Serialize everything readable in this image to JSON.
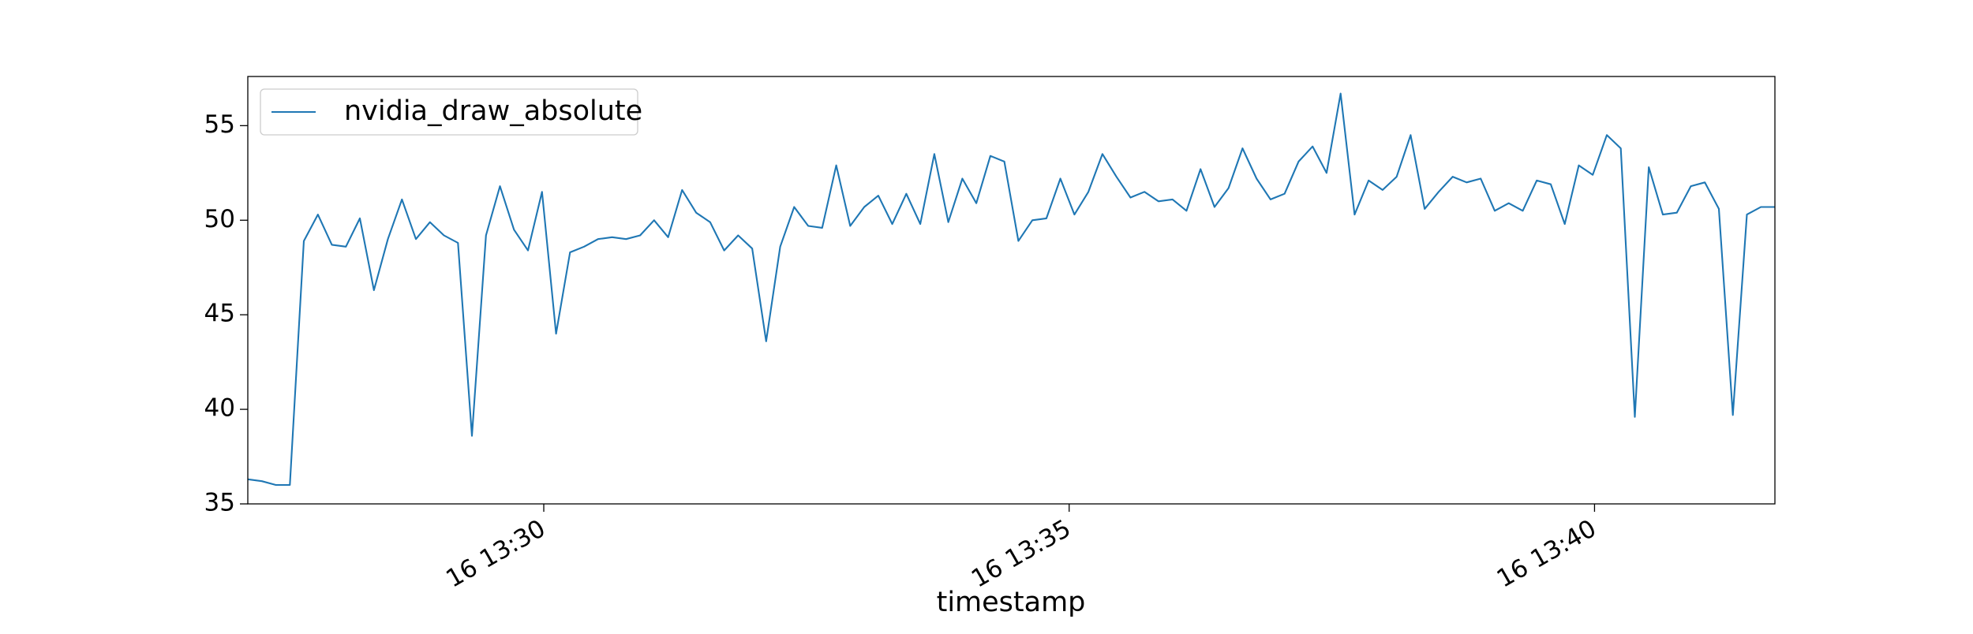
{
  "chart_data": {
    "type": "line",
    "xlabel": "timestamp",
    "x": [
      "16 13:27:11",
      "16 13:27:19",
      "16 13:27:27",
      "16 13:27:35",
      "16 13:27:43",
      "16 13:27:51",
      "16 13:27:59",
      "16 13:28:07",
      "16 13:28:15",
      "16 13:28:23",
      "16 13:28:31",
      "16 13:28:39",
      "16 13:28:47",
      "16 13:28:55",
      "16 13:29:03",
      "16 13:29:11",
      "16 13:29:19",
      "16 13:29:27",
      "16 13:29:35",
      "16 13:29:43",
      "16 13:29:51",
      "16 13:29:59",
      "16 13:30:07",
      "16 13:30:15",
      "16 13:30:23",
      "16 13:30:31",
      "16 13:30:39",
      "16 13:30:47",
      "16 13:30:55",
      "16 13:31:03",
      "16 13:31:11",
      "16 13:31:19",
      "16 13:31:27",
      "16 13:31:35",
      "16 13:31:43",
      "16 13:31:51",
      "16 13:31:59",
      "16 13:32:07",
      "16 13:32:15",
      "16 13:32:23",
      "16 13:32:31",
      "16 13:32:39",
      "16 13:32:47",
      "16 13:32:55",
      "16 13:33:03",
      "16 13:33:11",
      "16 13:33:19",
      "16 13:33:27",
      "16 13:33:35",
      "16 13:33:43",
      "16 13:33:51",
      "16 13:33:59",
      "16 13:34:07",
      "16 13:34:15",
      "16 13:34:23",
      "16 13:34:31",
      "16 13:34:39",
      "16 13:34:47",
      "16 13:34:55",
      "16 13:35:03",
      "16 13:35:11",
      "16 13:35:19",
      "16 13:35:27",
      "16 13:35:35",
      "16 13:35:43",
      "16 13:35:51",
      "16 13:35:59",
      "16 13:36:07",
      "16 13:36:15",
      "16 13:36:23",
      "16 13:36:31",
      "16 13:36:39",
      "16 13:36:47",
      "16 13:36:55",
      "16 13:37:03",
      "16 13:37:11",
      "16 13:37:19",
      "16 13:37:27",
      "16 13:37:35",
      "16 13:37:43",
      "16 13:37:51",
      "16 13:37:59",
      "16 13:38:07",
      "16 13:38:15",
      "16 13:38:23",
      "16 13:38:31",
      "16 13:38:39",
      "16 13:38:47",
      "16 13:38:55",
      "16 13:39:03",
      "16 13:39:11",
      "16 13:39:19",
      "16 13:39:27",
      "16 13:39:35",
      "16 13:39:43",
      "16 13:39:51",
      "16 13:39:59",
      "16 13:40:07",
      "16 13:40:15",
      "16 13:40:23",
      "16 13:40:31",
      "16 13:40:39",
      "16 13:40:47",
      "16 13:40:55",
      "16 13:41:03",
      "16 13:41:11",
      "16 13:41:19",
      "16 13:41:27",
      "16 13:41:35",
      "16 13:41:43"
    ],
    "series": [
      {
        "name": "nvidia_draw_absolute",
        "color": "#1f77b4",
        "values": [
          36.3,
          36.2,
          36.0,
          36.0,
          48.9,
          50.3,
          48.7,
          48.6,
          50.1,
          46.3,
          49.0,
          51.1,
          49.0,
          49.9,
          49.2,
          48.8,
          38.6,
          49.2,
          51.8,
          49.5,
          48.4,
          51.5,
          44.0,
          48.3,
          48.6,
          49.0,
          49.1,
          49.0,
          49.2,
          50.0,
          49.1,
          51.6,
          50.4,
          49.9,
          48.4,
          49.2,
          48.5,
          43.6,
          48.6,
          50.7,
          49.7,
          49.6,
          52.9,
          49.7,
          50.7,
          51.3,
          49.8,
          51.4,
          49.8,
          53.5,
          49.9,
          52.2,
          50.9,
          53.4,
          53.1,
          48.9,
          50.0,
          50.1,
          52.2,
          50.3,
          51.5,
          53.5,
          52.3,
          51.2,
          51.5,
          51.0,
          51.1,
          50.5,
          52.7,
          50.7,
          51.7,
          53.8,
          52.2,
          51.1,
          51.4,
          53.1,
          53.9,
          52.5,
          56.7,
          50.3,
          52.1,
          51.6,
          52.3,
          54.5,
          50.6,
          51.5,
          52.3,
          52.0,
          52.2,
          50.5,
          50.9,
          50.5,
          52.1,
          51.9,
          49.8,
          52.9,
          52.4,
          54.5,
          53.8,
          39.6,
          52.8,
          50.3,
          50.4,
          51.8,
          52.0,
          50.6,
          39.7,
          50.3,
          50.7,
          50.7
        ]
      }
    ],
    "xlim": [
      "16 13:27:11",
      "16 13:41:43"
    ],
    "xticks": [
      {
        "value": "16 13:30:00",
        "label": "16 13:30"
      },
      {
        "value": "16 13:35:00",
        "label": "16 13:35"
      },
      {
        "value": "16 13:40:00",
        "label": "16 13:40"
      }
    ],
    "ylim": [
      35,
      57.6
    ],
    "yticks": [
      35,
      40,
      45,
      50,
      55
    ],
    "legend": "upper left"
  }
}
